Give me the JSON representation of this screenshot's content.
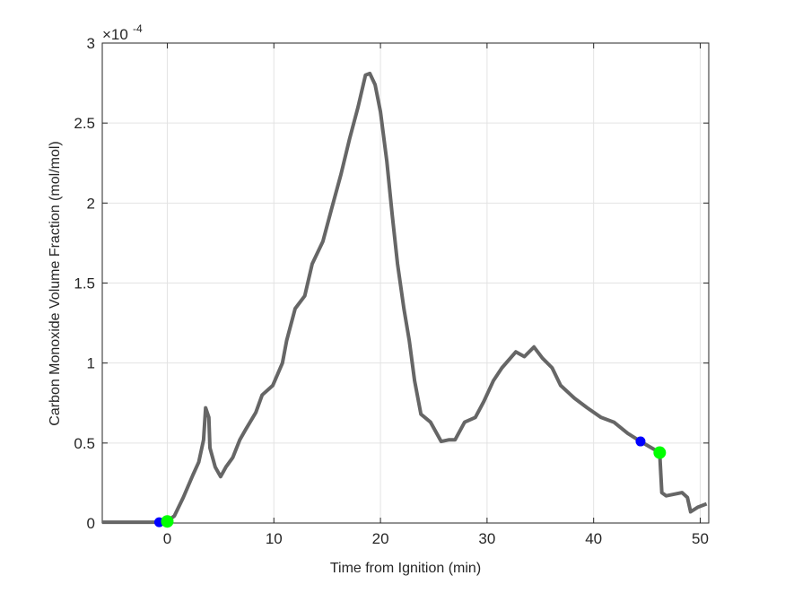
{
  "chart_data": {
    "type": "line",
    "title": "",
    "xlabel": "Time from Ignition (min)",
    "ylabel": "Carbon Monoxide Volume Fraction (mol/mol)",
    "y_exponent_label": "×10",
    "y_exponent": "-4",
    "xlim": [
      -6.1,
      50.8
    ],
    "ylim": [
      0,
      3
    ],
    "xticks": [
      0,
      10,
      20,
      30,
      40,
      50
    ],
    "yticks": [
      0,
      0.5,
      1,
      1.5,
      2,
      2.5,
      3
    ],
    "ytick_labels": [
      "0",
      "0.5",
      "1",
      "1.5",
      "2",
      "2.5",
      "3"
    ],
    "grid": true,
    "line_color": "#666666",
    "series": [
      {
        "x": [
          -6.1,
          -1.0,
          -0.76,
          0,
          0.67,
          1.5,
          2.4,
          2.95,
          3.4,
          3.6,
          3.9,
          4.0,
          4.5,
          5.0,
          5.5,
          6.15,
          6.8,
          7.4,
          8.3,
          8.9,
          9.9,
          10.8,
          11.2,
          12.0,
          12.9,
          13.6,
          14.6,
          15.4,
          16.3,
          17.1,
          17.9,
          18.6,
          19.0,
          19.5,
          20.0,
          20.6,
          21.1,
          21.6,
          22.2,
          22.7,
          23.2,
          23.8,
          24.7,
          25.7,
          26.4,
          27.0,
          27.9,
          28.9,
          29.7,
          30.6,
          31.4,
          32.7,
          33.5,
          34.4,
          35.2,
          36.1,
          36.9,
          38.2,
          39.4,
          40.7,
          41.9,
          43.2,
          44.4,
          46.2,
          46.4,
          46.8,
          48.3,
          48.8,
          49.1,
          49.8,
          50.6
        ],
        "y": [
          0.005,
          0.005,
          0.005,
          0.01,
          0.045,
          0.16,
          0.3,
          0.38,
          0.52,
          0.72,
          0.66,
          0.47,
          0.35,
          0.29,
          0.35,
          0.41,
          0.52,
          0.59,
          0.69,
          0.8,
          0.86,
          1.0,
          1.14,
          1.34,
          1.42,
          1.62,
          1.76,
          1.96,
          2.18,
          2.4,
          2.6,
          2.8,
          2.81,
          2.74,
          2.57,
          2.26,
          1.93,
          1.62,
          1.34,
          1.14,
          0.89,
          0.68,
          0.63,
          0.51,
          0.52,
          0.52,
          0.63,
          0.66,
          0.76,
          0.89,
          0.97,
          1.07,
          1.04,
          1.1,
          1.03,
          0.97,
          0.86,
          0.78,
          0.72,
          0.66,
          0.63,
          0.56,
          0.51,
          0.44,
          0.19,
          0.17,
          0.19,
          0.16,
          0.07,
          0.1,
          0.12
        ]
      }
    ],
    "markers": [
      {
        "color": "#0000ff",
        "x": -0.76,
        "y": 0.005
      },
      {
        "color": "#00ff00",
        "x": 0,
        "y": 0.01
      },
      {
        "color": "#0000ff",
        "x": 44.4,
        "y": 0.51
      },
      {
        "color": "#00ff00",
        "x": 46.2,
        "y": 0.44
      }
    ]
  }
}
